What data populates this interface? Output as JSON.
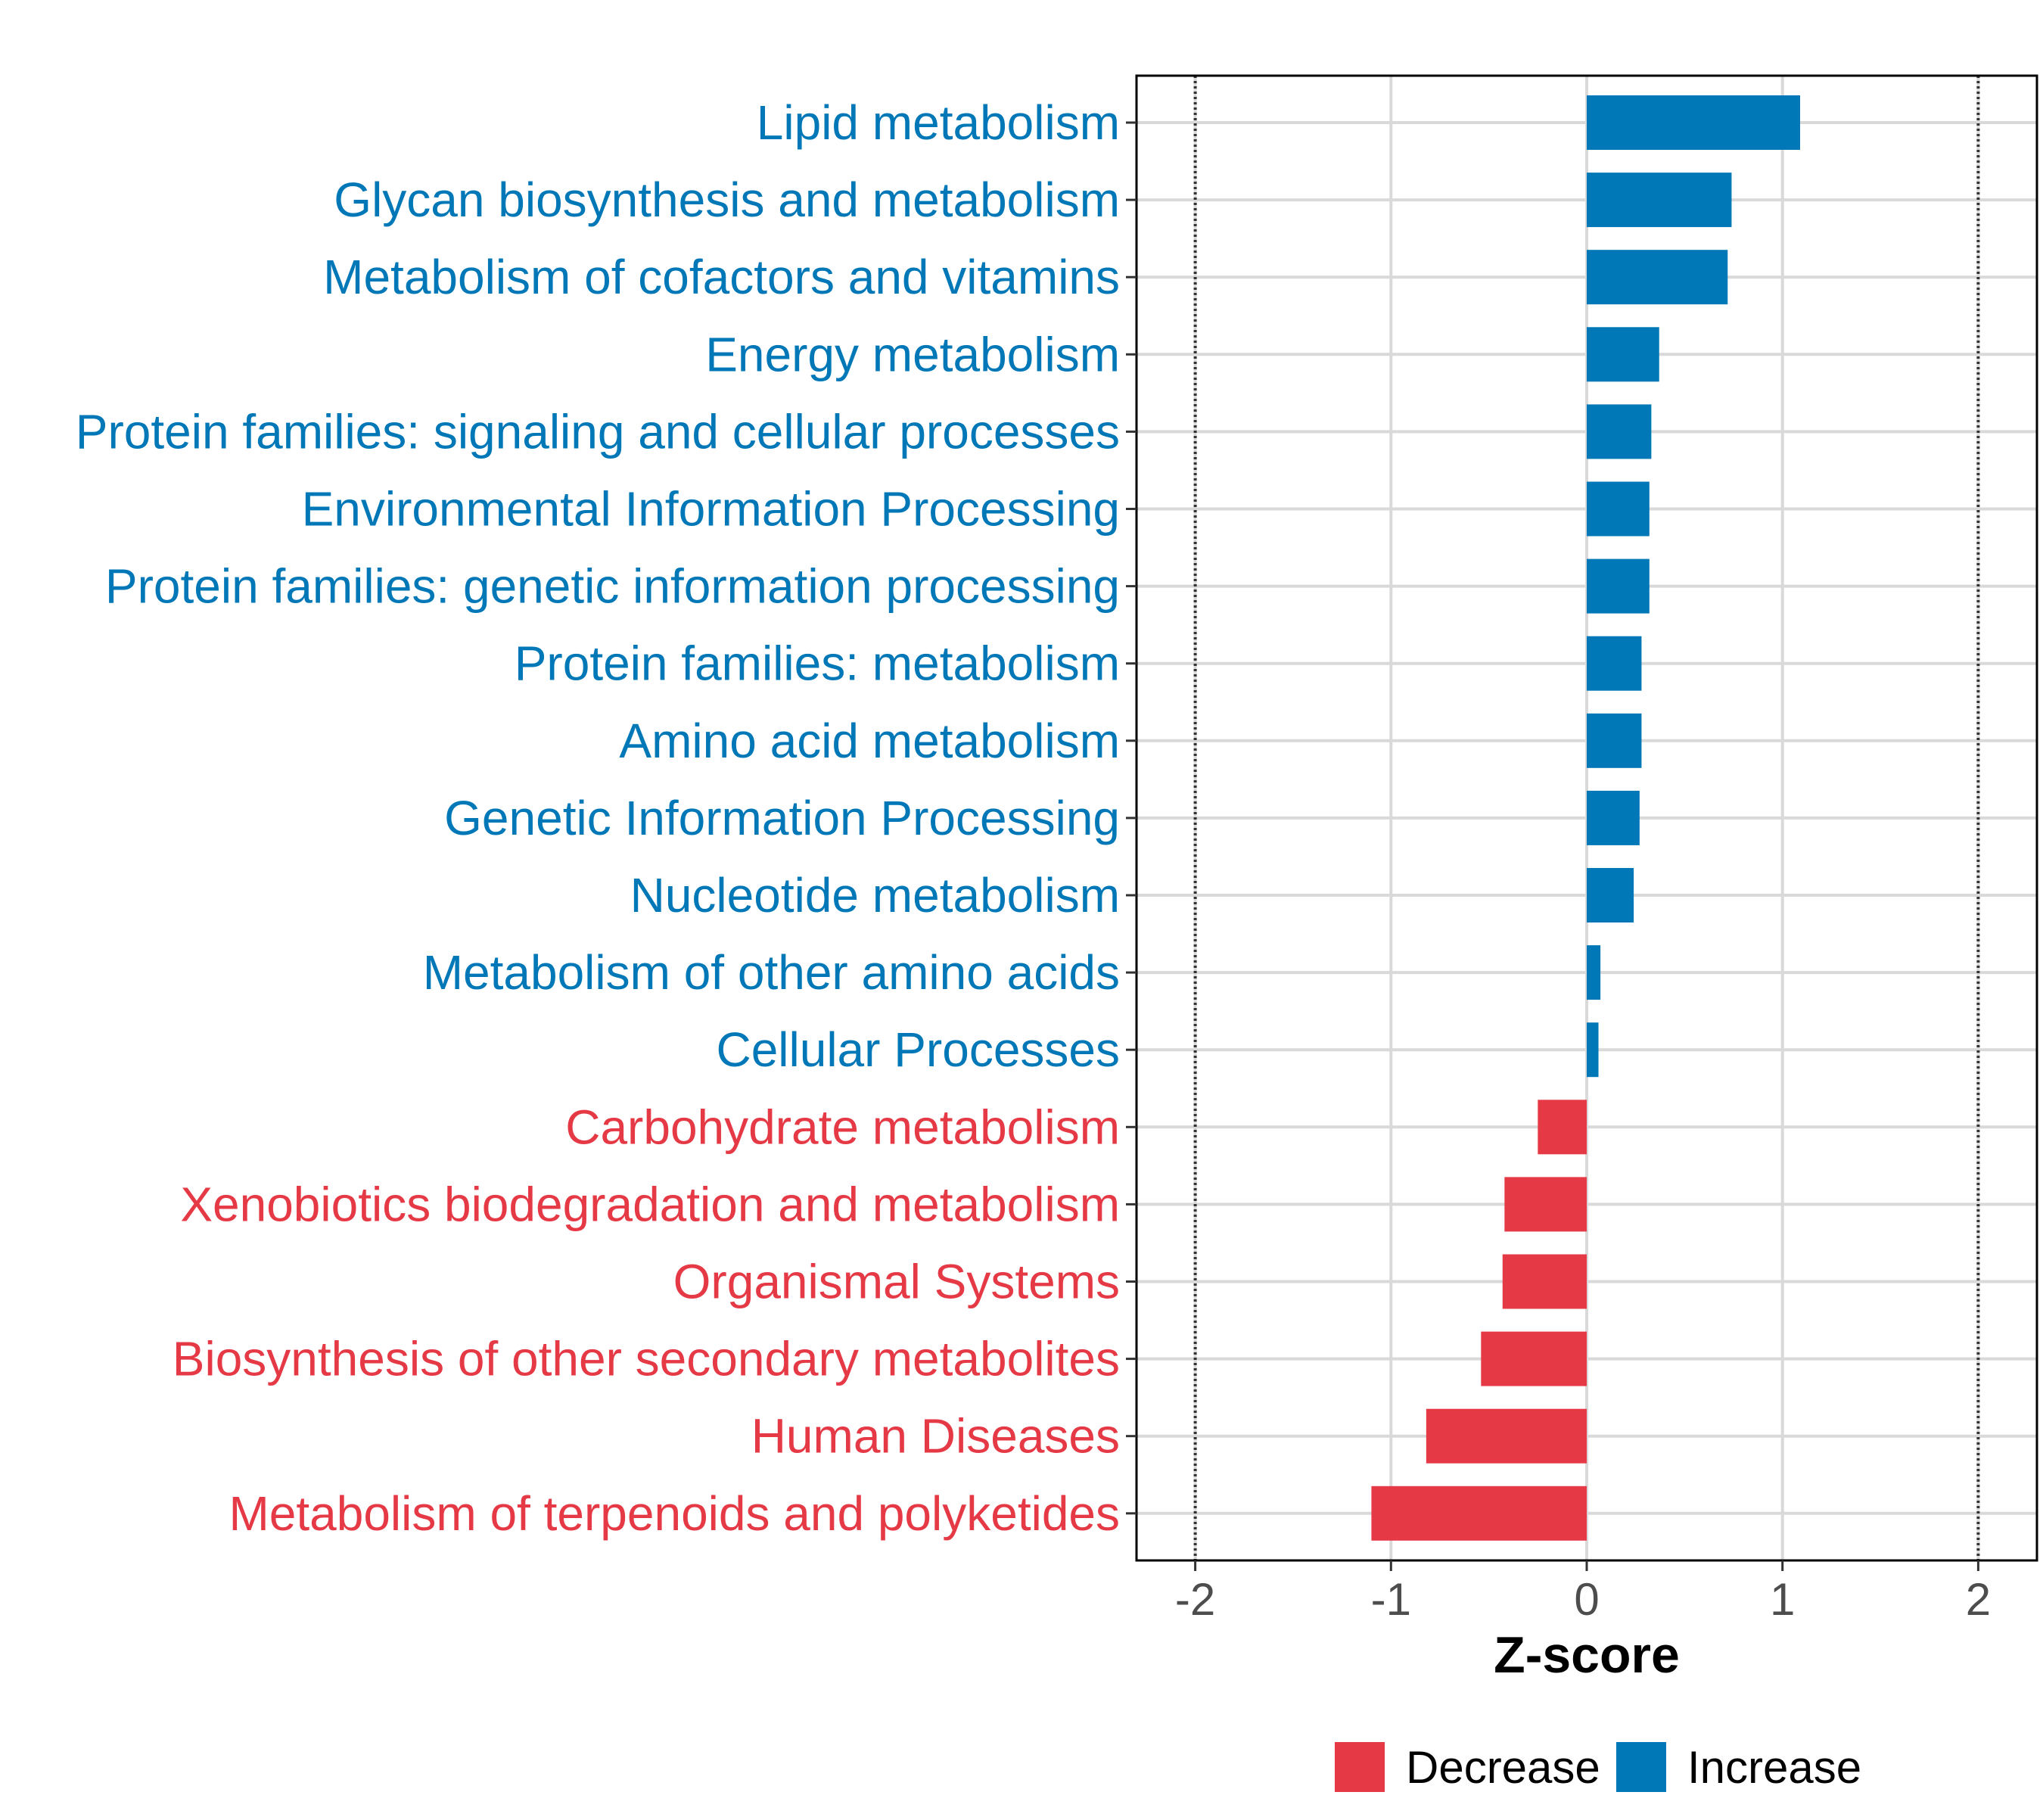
{
  "chart_data": {
    "type": "bar",
    "orientation": "horizontal",
    "title": "",
    "xlabel": "Z-score",
    "ylabel": "",
    "xlim": [
      -2.3,
      2.3
    ],
    "xticks": [
      -2,
      -1,
      0,
      1,
      2
    ],
    "xtick_labels": [
      "-2",
      "-1",
      "0",
      "1",
      "2"
    ],
    "reference_lines": [
      -2,
      2
    ],
    "grid": true,
    "legend_position": "bottom",
    "colors": {
      "Decrease": "#e63946",
      "Increase": "#0077b6"
    },
    "categories": [
      "Lipid metabolism",
      "Glycan biosynthesis and metabolism",
      "Metabolism of cofactors and vitamins",
      "Energy metabolism",
      "Protein families: signaling and cellular processes",
      "Environmental Information Processing",
      "Protein families: genetic information processing",
      "Protein families: metabolism",
      "Amino acid metabolism",
      "Genetic Information Processing",
      "Nucleotide metabolism",
      "Metabolism of other amino acids",
      "Cellular Processes",
      "Carbohydrate metabolism",
      "Xenobiotics biodegradation and metabolism",
      "Organismal Systems",
      "Biosynthesis of other secondary metabolites",
      "Human Diseases",
      "Metabolism of terpenoids and polyketides"
    ],
    "values": [
      1.09,
      0.74,
      0.72,
      0.37,
      0.33,
      0.32,
      0.32,
      0.28,
      0.28,
      0.27,
      0.24,
      0.07,
      0.06,
      -0.25,
      -0.42,
      -0.43,
      -0.54,
      -0.82,
      -1.1
    ],
    "groups": [
      "Increase",
      "Increase",
      "Increase",
      "Increase",
      "Increase",
      "Increase",
      "Increase",
      "Increase",
      "Increase",
      "Increase",
      "Increase",
      "Increase",
      "Increase",
      "Decrease",
      "Decrease",
      "Decrease",
      "Decrease",
      "Decrease",
      "Decrease"
    ],
    "legend": [
      {
        "name": "Decrease",
        "color": "#e63946"
      },
      {
        "name": "Increase",
        "color": "#0077b6"
      }
    ]
  }
}
